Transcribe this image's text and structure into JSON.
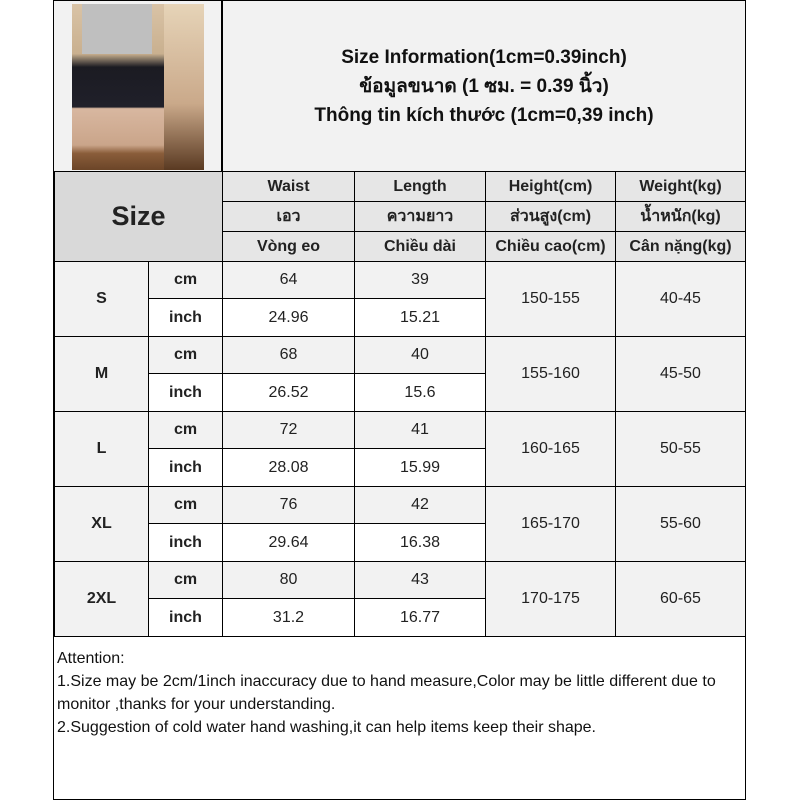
{
  "title": {
    "lines": [
      "Size Information(1cm=0.39inch)",
      "ข้อมูลขนาด (1 ซม. = 0.39 นิ้ว)",
      "Thông tin kích thước (1cm=0,39 inch)"
    ]
  },
  "table": {
    "size_label": "Size",
    "headers": [
      [
        "Waist",
        "Length",
        "Height(cm)",
        "Weight(kg)"
      ],
      [
        "เอว",
        "ความยาว",
        "ส่วนสูง(cm)",
        "น้ำหนัก(kg)"
      ],
      [
        "Vòng eo",
        "Chiều dài",
        "Chiều cao(cm)",
        "Cân nặng(kg)"
      ]
    ],
    "rows": [
      {
        "size": "S",
        "cm_label": "cm",
        "inch_label": "inch",
        "waist_cm": "64",
        "length_cm": "39",
        "waist_in": "24.96",
        "length_in": "15.21",
        "height": "150-155",
        "weight": "40-45"
      },
      {
        "size": "M",
        "cm_label": "cm",
        "inch_label": "inch",
        "waist_cm": "68",
        "length_cm": "40",
        "waist_in": "26.52",
        "length_in": "15.6",
        "height": "155-160",
        "weight": "45-50"
      },
      {
        "size": "L",
        "cm_label": "cm",
        "inch_label": "inch",
        "waist_cm": "72",
        "length_cm": "41",
        "waist_in": "28.08",
        "length_in": "15.99",
        "height": "160-165",
        "weight": "50-55"
      },
      {
        "size": "XL",
        "cm_label": "cm",
        "inch_label": "inch",
        "waist_cm": "76",
        "length_cm": "42",
        "waist_in": "29.64",
        "length_in": "16.38",
        "height": "165-170",
        "weight": "55-60"
      },
      {
        "size": "2XL",
        "cm_label": "cm",
        "inch_label": "inch",
        "waist_cm": "80",
        "length_cm": "43",
        "waist_in": "31.2",
        "length_in": "16.77",
        "height": "170-175",
        "weight": "60-65"
      }
    ]
  },
  "notes": [
    "Attention:",
    "1.Size may be 2cm/1inch inaccuracy due to hand measure,Color may be little different due to monitor ,thanks for your understanding.",
    "2.Suggestion of cold water hand washing,it can help items keep their shape."
  ]
}
